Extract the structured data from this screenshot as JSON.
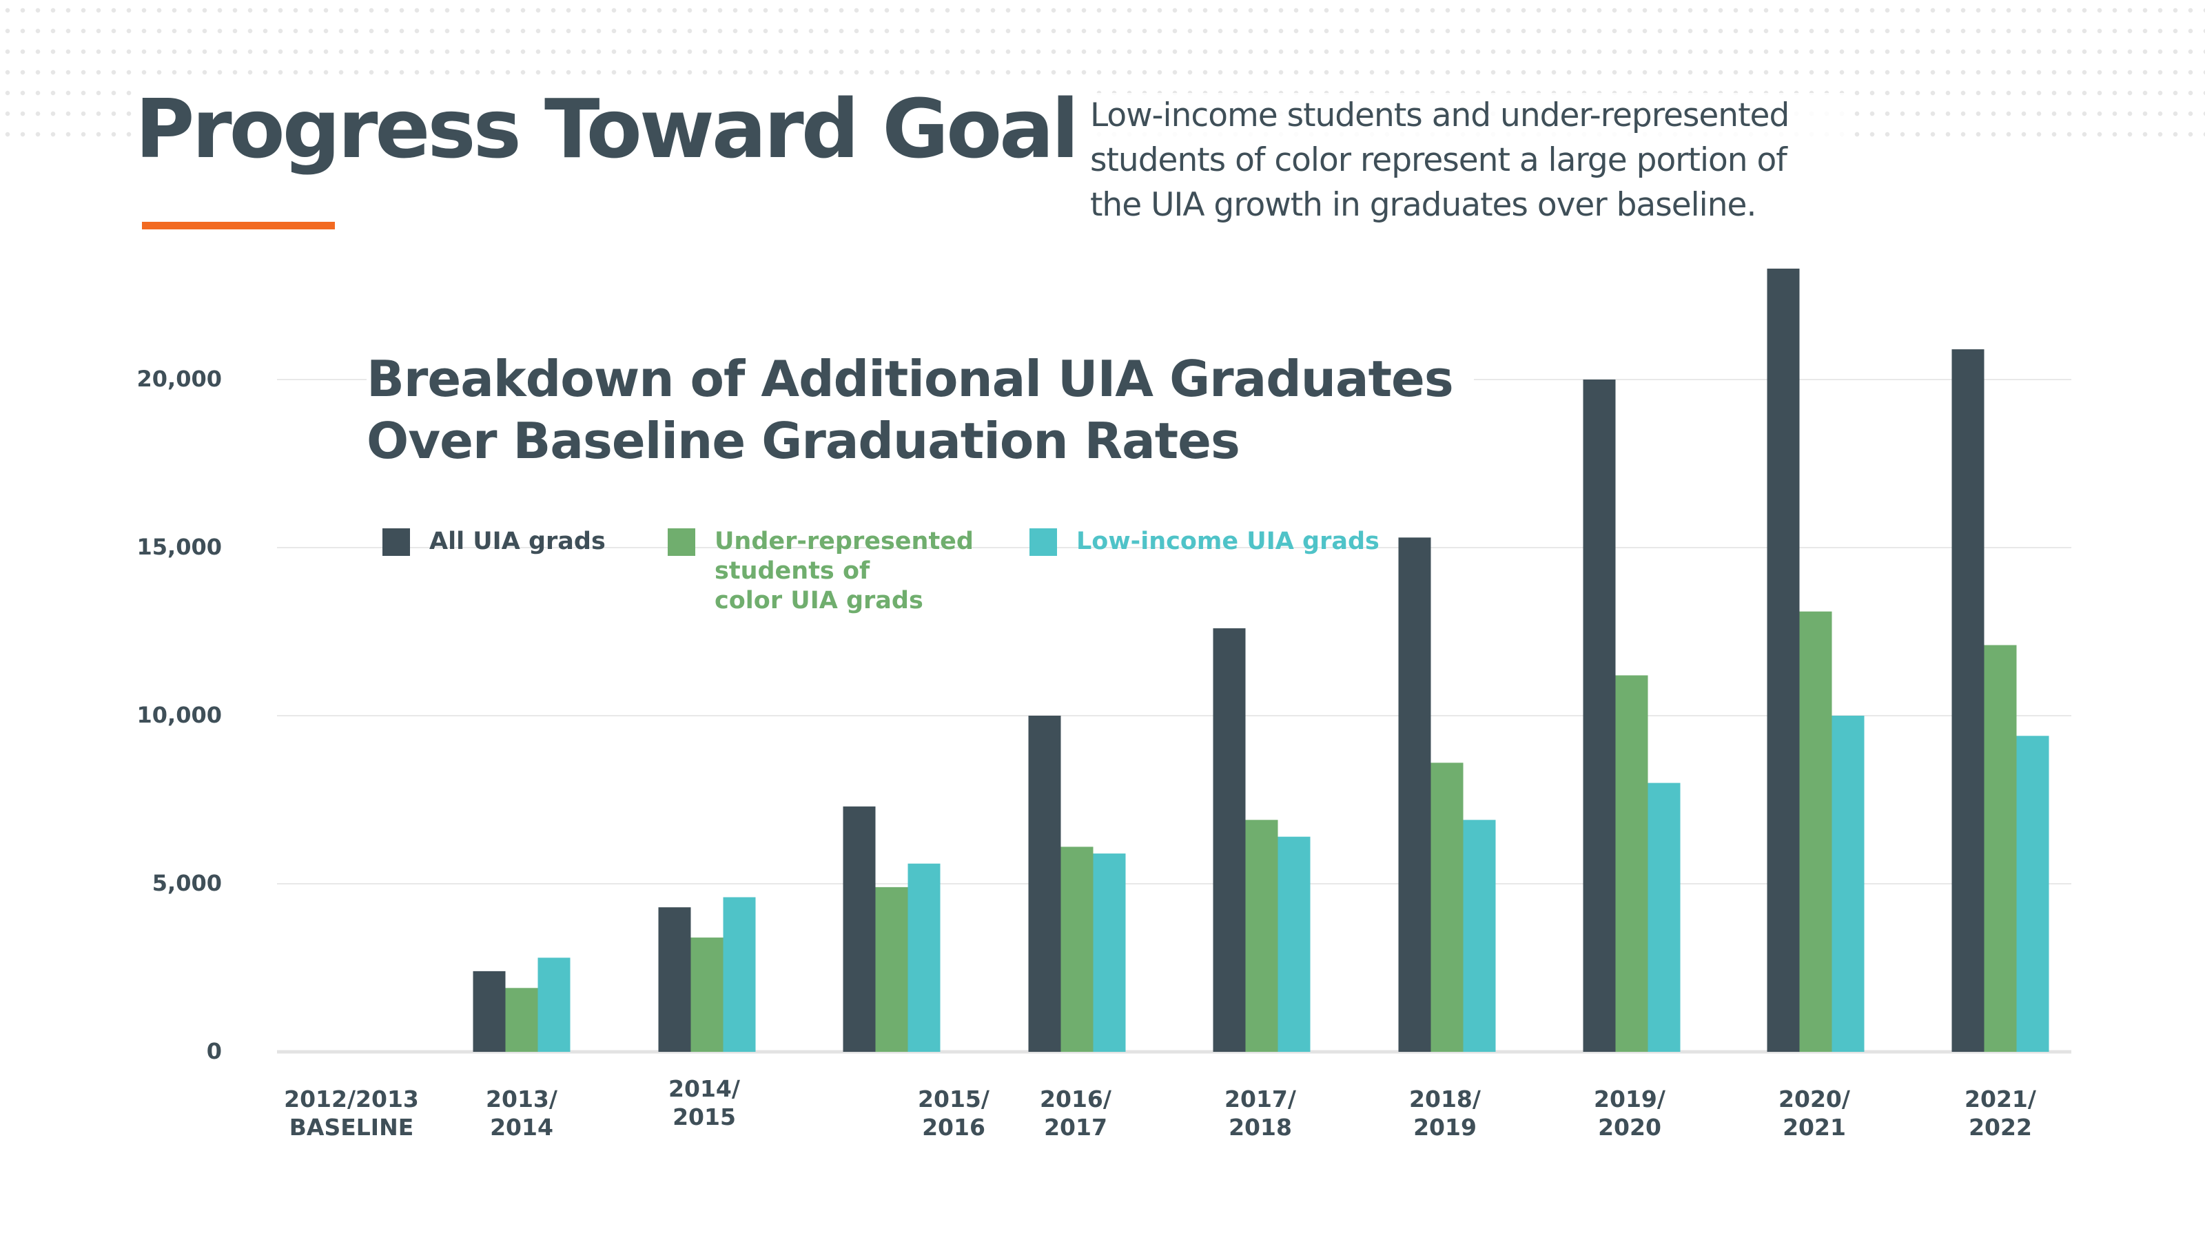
{
  "header": {
    "title": "Progress Toward Goal",
    "subtitle_lines": [
      "Low-income students and under-represented",
      "students of color represent a large portion of",
      "the UIA growth in graduates over baseline."
    ],
    "accent_color": "#f26a21"
  },
  "chart_data": {
    "type": "bar",
    "title_lines": [
      "Breakdown of Additional UIA Graduates",
      "Over Baseline Graduation Rates"
    ],
    "categories": [
      [
        "2012/2013",
        "BASELINE"
      ],
      [
        "2013/",
        "2014"
      ],
      [
        "2014/",
        "2015"
      ],
      [
        "2015/",
        "2016"
      ],
      [
        "2016/",
        "2017"
      ],
      [
        "2017/",
        "2018"
      ],
      [
        "2018/",
        "2019"
      ],
      [
        "2019/",
        "2020"
      ],
      [
        "2020/",
        "2021"
      ],
      [
        "2021/",
        "2022"
      ]
    ],
    "series": [
      {
        "name": "All UIA grads",
        "name_lines": [
          "All UIA grads"
        ],
        "color": "#3f4f58",
        "values": [
          0,
          2400,
          4300,
          7300,
          10000,
          12600,
          15300,
          20000,
          23300,
          20900
        ]
      },
      {
        "name": "Under-represented students of color UIA grads",
        "name_lines": [
          "Under-represented",
          "students of",
          "color UIA grads"
        ],
        "color": "#70ae6e",
        "values": [
          0,
          1900,
          3400,
          4900,
          6100,
          6900,
          8600,
          11200,
          13100,
          12100
        ]
      },
      {
        "name": "Low-income UIA grads",
        "name_lines": [
          "Low-income UIA grads"
        ],
        "color": "#4fc3c8",
        "values": [
          0,
          2800,
          4600,
          5600,
          5900,
          6400,
          6900,
          8000,
          10000,
          9400
        ]
      }
    ],
    "yticks": [
      "0",
      "5,000",
      "10,000",
      "15,000",
      "20,000"
    ],
    "ytick_values": [
      0,
      5000,
      10000,
      15000,
      20000
    ],
    "ylim": [
      0,
      23300
    ],
    "grid": true,
    "legend_position": "top-left"
  }
}
